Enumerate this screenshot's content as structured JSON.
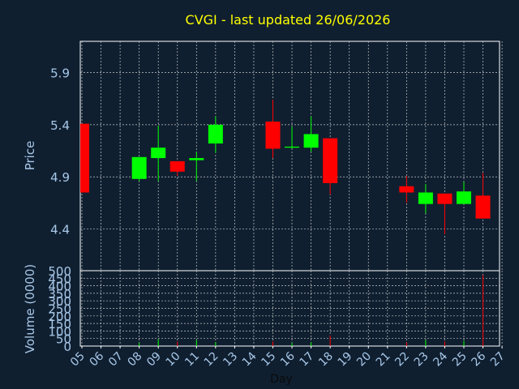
{
  "chart_data": {
    "type": "candlestick",
    "title": "CVGI - last updated 26/06/2026",
    "xlabel": "Day",
    "ylabel": "Price",
    "volume_label": "Volume (0000)",
    "days": [
      "05",
      "06",
      "07",
      "08",
      "09",
      "10",
      "11",
      "12",
      "13",
      "14",
      "15",
      "16",
      "17",
      "18",
      "19",
      "20",
      "21",
      "22",
      "23",
      "24",
      "25",
      "26",
      "27"
    ],
    "price_ylim": [
      4.0,
      6.2
    ],
    "price_ticks": [
      4.4,
      4.9,
      5.4,
      5.9
    ],
    "price_tick_labels": [
      "4.4",
      "4.9",
      "5.4",
      "5.9"
    ],
    "volume_ylim": [
      0,
      500
    ],
    "volume_ticks": [
      0,
      50,
      100,
      150,
      200,
      250,
      300,
      350,
      400,
      450,
      500
    ],
    "volume_tick_labels": [
      "0",
      "50",
      "100",
      "150",
      "200",
      "250",
      "300",
      "350",
      "400",
      "450",
      "500"
    ],
    "grid": true,
    "colors": {
      "background": "#0f1f30",
      "up": "#00ff00",
      "down": "#ff0000",
      "title": "#ffff00",
      "axis_text": "#a8c8e8",
      "frame": "#ffffff",
      "grid": "#c8c8c8"
    },
    "candles": [
      {
        "day": "05",
        "open": 5.41,
        "high": 5.41,
        "low": 4.75,
        "close": 4.75,
        "volume": 0
      },
      {
        "day": "08",
        "open": 4.88,
        "high": 5.09,
        "low": 4.86,
        "close": 5.09,
        "volume": 20
      },
      {
        "day": "09",
        "open": 5.08,
        "high": 5.39,
        "low": 4.86,
        "close": 5.18,
        "volume": 45
      },
      {
        "day": "10",
        "open": 5.05,
        "high": 5.05,
        "low": 4.91,
        "close": 4.95,
        "volume": 30
      },
      {
        "day": "11",
        "open": 5.06,
        "high": 5.14,
        "low": 4.86,
        "close": 5.08,
        "volume": 40
      },
      {
        "day": "12",
        "open": 5.22,
        "high": 5.48,
        "low": 5.13,
        "close": 5.4,
        "volume": 25
      },
      {
        "day": "15",
        "open": 5.43,
        "high": 5.64,
        "low": 5.08,
        "close": 5.17,
        "volume": 30
      },
      {
        "day": "16",
        "open": 5.18,
        "high": 5.38,
        "low": 5.17,
        "close": 5.19,
        "volume": 20
      },
      {
        "day": "17",
        "open": 5.18,
        "high": 5.48,
        "low": 5.14,
        "close": 5.31,
        "volume": 25
      },
      {
        "day": "18",
        "open": 5.27,
        "high": 5.27,
        "low": 4.73,
        "close": 4.84,
        "volume": 70
      },
      {
        "day": "22",
        "open": 4.81,
        "high": 4.91,
        "low": 4.65,
        "close": 4.75,
        "volume": 25
      },
      {
        "day": "23",
        "open": 4.64,
        "high": 4.83,
        "low": 4.55,
        "close": 4.75,
        "volume": 40
      },
      {
        "day": "24",
        "open": 4.74,
        "high": 4.74,
        "low": 4.35,
        "close": 4.64,
        "volume": 30
      },
      {
        "day": "25",
        "open": 4.64,
        "high": 4.85,
        "low": 4.64,
        "close": 4.76,
        "volume": 35
      },
      {
        "day": "26",
        "open": 4.72,
        "high": 4.94,
        "low": 4.5,
        "close": 4.5,
        "volume": 470
      }
    ]
  }
}
